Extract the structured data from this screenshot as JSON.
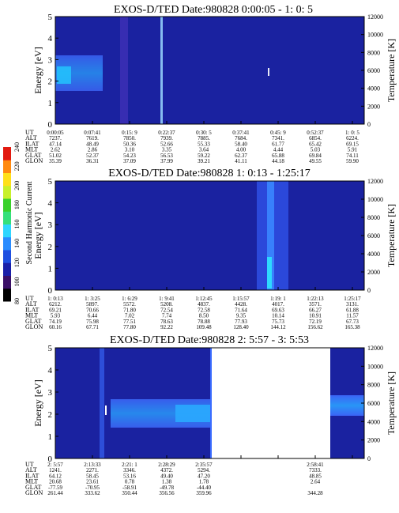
{
  "colorbar": {
    "label": "Second Harmonic Current",
    "ticks": [
      "80",
      "100",
      "120",
      "140",
      "160",
      "180",
      "200",
      "220",
      "240"
    ],
    "colors": [
      "#000000",
      "#3a0f66",
      "#1a1fa8",
      "#1f4fe0",
      "#2a8cff",
      "#2fd6ff",
      "#35e07a",
      "#3ad12a",
      "#c8f02a",
      "#ffe01a",
      "#ff8a10",
      "#e21a10"
    ]
  },
  "chart_data": [
    {
      "type": "heatmap",
      "title": "EXOS-D/TED   Date:980828  0:00:05 - 1: 0: 5",
      "ylabel": "Energy [eV]",
      "y2label": "Temperature [K]",
      "ylim": [
        0,
        5
      ],
      "y_ticks": [
        "0",
        "1",
        "2",
        "3",
        "4",
        "5"
      ],
      "y2lim": [
        0,
        12000
      ],
      "y2_ticks": [
        "0",
        "2000",
        "4000",
        "6000",
        "8000",
        "10000",
        "12000"
      ],
      "row_labels": [
        "UT",
        "ALT",
        "ILAT",
        "MLT",
        "GLAT",
        "GLON"
      ],
      "columns": [
        [
          "0:00:05",
          "7237.",
          "47.14",
          "2.62",
          "51.02",
          "35.39"
        ],
        [
          "0:07:41",
          "7619.",
          "48.49",
          "2.86",
          "52.37",
          "36.31"
        ],
        [
          "0:15: 9",
          "7850.",
          "50.36",
          "3.10",
          "54.23",
          "37.09"
        ],
        [
          "0:22:37",
          "7939.",
          "52.66",
          "3.35",
          "56.53",
          "37.99"
        ],
        [
          "0:30: 5",
          "7885.",
          "55.33",
          "3.64",
          "59.22",
          "39.21"
        ],
        [
          "0:37:41",
          "7684.",
          "58.40",
          "4.00",
          "62.37",
          "41.11"
        ],
        [
          "0:45: 9",
          "7341.",
          "61.77",
          "4.44",
          "65.88",
          "44.18"
        ],
        [
          "0:52:37",
          "6854.",
          "65.42",
          "5.03",
          "69.84",
          "49.55"
        ],
        [
          "1: 0: 5",
          "6224.",
          "69.15",
          "5.91",
          "74.11",
          "59.90"
        ]
      ]
    },
    {
      "type": "heatmap",
      "title": "EXOS-D/TED   Date:980828  1: 0:13 - 1:25:17",
      "ylabel": "Energy [eV]",
      "y2label": "Temperature [K]",
      "ylim": [
        0,
        5
      ],
      "y_ticks": [
        "0",
        "1",
        "2",
        "3",
        "4",
        "5"
      ],
      "y2lim": [
        0,
        12000
      ],
      "y2_ticks": [
        "0",
        "2000",
        "4000",
        "6000",
        "8000",
        "10000",
        "12000"
      ],
      "row_labels": [
        "UT",
        "ALT",
        "ILAT",
        "MLT",
        "GLAT",
        "GLON"
      ],
      "columns": [
        [
          "1: 0:13",
          "6212.",
          "69.21",
          "5.93",
          "74.19",
          "60.16"
        ],
        [
          "1: 3:25",
          "5897.",
          "70.66",
          "6.44",
          "75.98",
          "67.71"
        ],
        [
          "1: 6:29",
          "5572.",
          "71.80",
          "7.02",
          "77.51",
          "77.80"
        ],
        [
          "1: 9:41",
          "5208.",
          "72.54",
          "7.74",
          "78.63",
          "92.22"
        ],
        [
          "1:12:45",
          "4837.",
          "72.58",
          "8.50",
          "78.88",
          "109.48"
        ],
        [
          "1:15:57",
          "4428.",
          "71.64",
          "9.35",
          "77.93",
          "128.40"
        ],
        [
          "1:19: 1",
          "4017.",
          "69.63",
          "10.14",
          "75.73",
          "144.12"
        ],
        [
          "1:22:13",
          "3571.",
          "66.27",
          "10.91",
          "72.19",
          "156.62"
        ],
        [
          "1:25:17",
          "3131.",
          "61.88",
          "11.57",
          "67.73",
          "165.38"
        ]
      ]
    },
    {
      "type": "heatmap",
      "title": "EXOS-D/TED   Date:980828  2: 5:57 - 3: 5:53",
      "ylabel": "Energy [eV]",
      "y2label": "Temperature [K]",
      "ylim": [
        0,
        5
      ],
      "y_ticks": [
        "0",
        "1",
        "2",
        "3",
        "4",
        "5"
      ],
      "y2lim": [
        0,
        12000
      ],
      "y2_ticks": [
        "0",
        "2000",
        "4000",
        "6000",
        "8000",
        "10000",
        "12000"
      ],
      "row_labels": [
        "UT",
        "ALT",
        "ILAT",
        "MLT",
        "GLAT",
        "GLON"
      ],
      "columns": [
        [
          "2: 5:57",
          "1241.",
          "64.12",
          "20.68",
          "-77.59",
          "261.44"
        ],
        [
          "2:13:33",
          "2271.",
          "58.45",
          "23.61",
          "-70.95",
          "333.62"
        ],
        [
          "2:21: 1",
          "3346.",
          "53.16",
          "0.78",
          "-58.91",
          "350.44"
        ],
        [
          "2:28:29",
          "4372.",
          "49.40",
          "1.38",
          "-49.78",
          "356.56"
        ],
        [
          "2:35:57",
          "5294.",
          "47.20",
          "1.78",
          "-44.40",
          "359.96"
        ],
        [
          "",
          "",
          "",
          "",
          "",
          ""
        ],
        [
          "",
          "",
          "",
          "",
          "",
          ""
        ],
        [
          "2:58:41",
          "7333.",
          "48.85",
          "2.64",
          "",
          "344.28"
        ],
        [
          "",
          "",
          "",
          "",
          "",
          ""
        ]
      ]
    }
  ]
}
